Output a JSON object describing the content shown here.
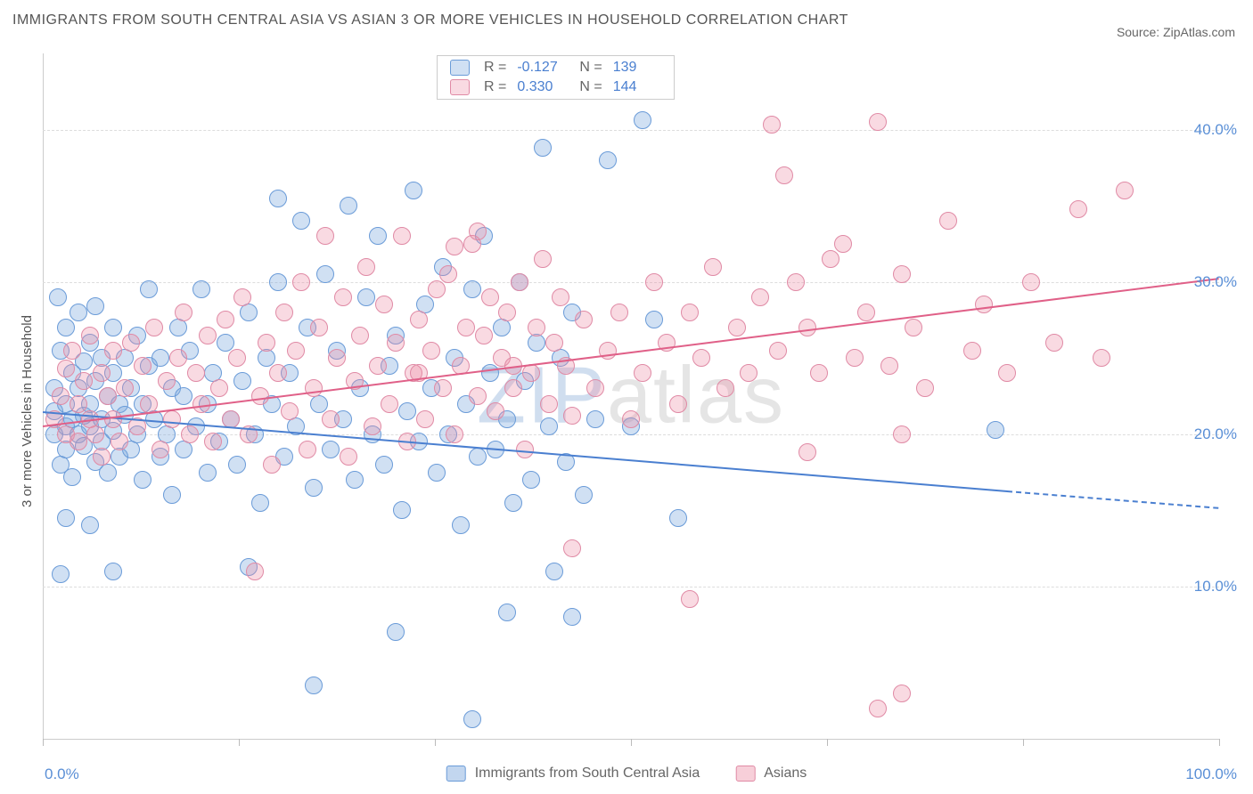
{
  "title": "IMMIGRANTS FROM SOUTH CENTRAL ASIA VS ASIAN 3 OR MORE VEHICLES IN HOUSEHOLD CORRELATION CHART",
  "source_prefix": "Source: ",
  "source_name": "ZipAtlas.com",
  "ylabel": "3 or more Vehicles in Household",
  "watermark_zip": "ZIP",
  "watermark_rest": "atlas",
  "chart": {
    "type": "scatter",
    "xlim": [
      0,
      100
    ],
    "ylim": [
      0,
      45
    ],
    "yticks": [
      10,
      20,
      30,
      40
    ],
    "ytick_labels": [
      "10.0%",
      "20.0%",
      "30.0%",
      "40.0%"
    ],
    "xtick_marks": [
      0,
      16.7,
      33.3,
      50,
      66.7,
      83.3,
      100
    ],
    "x_start_label": "0.0%",
    "x_end_label": "100.0%",
    "grid_color": "#dddddd",
    "axis_color": "#cccccc",
    "background_color": "#ffffff",
    "series": [
      {
        "name": "Immigrants from South Central Asia",
        "fill": "rgba(120,165,220,0.35)",
        "stroke": "#6a9bd8",
        "line_color": "#4a7fd0",
        "marker_radius": 10,
        "R": "-0.127",
        "N": "139",
        "trend": {
          "x1": 0,
          "y1": 21.5,
          "x2": 82,
          "y2": 16.3,
          "solid": true
        },
        "trend_ext": {
          "x1": 82,
          "y1": 16.3,
          "x2": 100,
          "y2": 15.2,
          "solid": false
        },
        "points": [
          [
            1,
            20
          ],
          [
            1,
            21.5
          ],
          [
            1,
            23
          ],
          [
            1.5,
            18
          ],
          [
            1.5,
            25.5
          ],
          [
            1.5,
            10.8
          ],
          [
            2,
            20.5
          ],
          [
            2,
            22
          ],
          [
            2,
            19
          ],
          [
            2,
            27
          ],
          [
            2.5,
            24
          ],
          [
            2.5,
            21
          ],
          [
            2.5,
            17.2
          ],
          [
            3,
            23
          ],
          [
            3,
            20
          ],
          [
            3,
            28
          ],
          [
            3.5,
            21.2
          ],
          [
            3.5,
            24.8
          ],
          [
            3.5,
            19.2
          ],
          [
            4,
            22
          ],
          [
            4,
            26
          ],
          [
            4,
            20.5
          ],
          [
            4.5,
            23.5
          ],
          [
            4.5,
            18.2
          ],
          [
            4.5,
            28.4
          ],
          [
            5,
            21
          ],
          [
            5,
            25
          ],
          [
            5,
            19.5
          ],
          [
            5.5,
            22.5
          ],
          [
            5.5,
            17.5
          ],
          [
            6,
            24
          ],
          [
            6,
            20.2
          ],
          [
            6,
            27
          ],
          [
            6.5,
            22
          ],
          [
            6.5,
            18.5
          ],
          [
            7,
            25
          ],
          [
            7,
            21.3
          ],
          [
            7.5,
            19
          ],
          [
            7.5,
            23
          ],
          [
            8,
            26.5
          ],
          [
            8,
            20
          ],
          [
            8.5,
            22
          ],
          [
            8.5,
            17
          ],
          [
            9,
            24.5
          ],
          [
            9,
            29.5
          ],
          [
            9.5,
            21
          ],
          [
            10,
            18.5
          ],
          [
            10,
            25
          ],
          [
            10.5,
            20
          ],
          [
            11,
            23
          ],
          [
            11,
            16
          ],
          [
            11.5,
            27
          ],
          [
            12,
            19
          ],
          [
            12,
            22.5
          ],
          [
            12.5,
            25.5
          ],
          [
            13,
            20.5
          ],
          [
            13.5,
            29.5
          ],
          [
            14,
            17.5
          ],
          [
            14,
            22
          ],
          [
            14.5,
            24
          ],
          [
            15,
            19.5
          ],
          [
            15.5,
            26
          ],
          [
            16,
            21
          ],
          [
            16.5,
            18
          ],
          [
            17,
            23.5
          ],
          [
            17.5,
            28
          ],
          [
            18,
            20
          ],
          [
            18.5,
            15.5
          ],
          [
            19,
            25
          ],
          [
            19.5,
            22
          ],
          [
            20,
            35.5
          ],
          [
            20,
            30
          ],
          [
            20.5,
            18.5
          ],
          [
            21,
            24
          ],
          [
            21.5,
            20.5
          ],
          [
            22,
            34
          ],
          [
            22.5,
            27
          ],
          [
            23,
            16.5
          ],
          [
            23.5,
            22
          ],
          [
            24,
            30.5
          ],
          [
            24.5,
            19
          ],
          [
            25,
            25.5
          ],
          [
            25.5,
            21
          ],
          [
            26,
            35
          ],
          [
            26.5,
            17
          ],
          [
            27,
            23
          ],
          [
            27.5,
            29
          ],
          [
            28,
            20
          ],
          [
            28.5,
            33
          ],
          [
            29,
            18
          ],
          [
            29.5,
            24.5
          ],
          [
            30,
            26.5
          ],
          [
            30.5,
            15
          ],
          [
            31,
            21.5
          ],
          [
            31.5,
            36
          ],
          [
            32,
            19.5
          ],
          [
            32.5,
            28.5
          ],
          [
            33,
            23
          ],
          [
            33.5,
            17.5
          ],
          [
            34,
            31
          ],
          [
            34.5,
            20
          ],
          [
            35,
            25
          ],
          [
            35.5,
            14
          ],
          [
            36,
            22
          ],
          [
            36.5,
            29.5
          ],
          [
            37,
            18.5
          ],
          [
            37.5,
            33
          ],
          [
            38,
            24
          ],
          [
            38.5,
            19
          ],
          [
            39,
            27
          ],
          [
            39.5,
            21
          ],
          [
            40,
            15.5
          ],
          [
            40.5,
            30
          ],
          [
            41,
            23.5
          ],
          [
            41.5,
            17
          ],
          [
            42,
            26
          ],
          [
            42.5,
            38.8
          ],
          [
            43,
            20.5
          ],
          [
            43.5,
            11
          ],
          [
            44,
            25
          ],
          [
            44.5,
            18.2
          ],
          [
            45,
            28
          ],
          [
            45,
            8
          ],
          [
            46,
            16
          ],
          [
            47,
            21
          ],
          [
            48,
            38
          ],
          [
            50,
            20.5
          ],
          [
            51,
            40.6
          ],
          [
            52,
            27.5
          ],
          [
            54,
            14.5
          ],
          [
            23,
            3.5
          ],
          [
            30,
            7
          ],
          [
            36.5,
            1.3
          ],
          [
            39.5,
            8.3
          ],
          [
            17.5,
            11.3
          ],
          [
            81,
            20.3
          ],
          [
            6,
            11
          ],
          [
            4,
            14
          ],
          [
            2,
            14.5
          ],
          [
            1.3,
            29
          ]
        ]
      },
      {
        "name": "Asians",
        "fill": "rgba(235,140,165,0.32)",
        "stroke": "#e08aa5",
        "line_color": "#e06088",
        "marker_radius": 10,
        "R": "0.330",
        "N": "144",
        "trend": {
          "x1": 0,
          "y1": 20.6,
          "x2": 100,
          "y2": 30.3,
          "solid": true
        },
        "points": [
          [
            1,
            21
          ],
          [
            1.5,
            22.5
          ],
          [
            2,
            20
          ],
          [
            2,
            24.3
          ],
          [
            2.5,
            25.5
          ],
          [
            3,
            22
          ],
          [
            3,
            19.5
          ],
          [
            3.5,
            23.5
          ],
          [
            4,
            21
          ],
          [
            4,
            26.5
          ],
          [
            4.5,
            20
          ],
          [
            5,
            24
          ],
          [
            5,
            18.5
          ],
          [
            5.5,
            22.5
          ],
          [
            6,
            25.5
          ],
          [
            6,
            21
          ],
          [
            6.5,
            19.5
          ],
          [
            7,
            23
          ],
          [
            7.5,
            26
          ],
          [
            8,
            20.5
          ],
          [
            8.5,
            24.5
          ],
          [
            9,
            22
          ],
          [
            9.5,
            27
          ],
          [
            10,
            19
          ],
          [
            10.5,
            23.5
          ],
          [
            11,
            21
          ],
          [
            11.5,
            25
          ],
          [
            12,
            28
          ],
          [
            12.5,
            20
          ],
          [
            13,
            24
          ],
          [
            13.5,
            22
          ],
          [
            14,
            26.5
          ],
          [
            14.5,
            19.5
          ],
          [
            15,
            23
          ],
          [
            15.5,
            27.5
          ],
          [
            16,
            21
          ],
          [
            16.5,
            25
          ],
          [
            17,
            29
          ],
          [
            17.5,
            20
          ],
          [
            18,
            11
          ],
          [
            18.5,
            22.5
          ],
          [
            19,
            26
          ],
          [
            19.5,
            18
          ],
          [
            20,
            24
          ],
          [
            20.5,
            28
          ],
          [
            21,
            21.5
          ],
          [
            21.5,
            25.5
          ],
          [
            22,
            30
          ],
          [
            22.5,
            19
          ],
          [
            23,
            23
          ],
          [
            23.5,
            27
          ],
          [
            24,
            33
          ],
          [
            24.5,
            21
          ],
          [
            25,
            25
          ],
          [
            25.5,
            29
          ],
          [
            26,
            18.5
          ],
          [
            26.5,
            23.5
          ],
          [
            27,
            26.5
          ],
          [
            27.5,
            31
          ],
          [
            28,
            20.5
          ],
          [
            28.5,
            24.5
          ],
          [
            29,
            28.5
          ],
          [
            29.5,
            22
          ],
          [
            30,
            26
          ],
          [
            30.5,
            33
          ],
          [
            31,
            19.5
          ],
          [
            31.5,
            24
          ],
          [
            32,
            27.5
          ],
          [
            32.5,
            21
          ],
          [
            33,
            25.5
          ],
          [
            33.5,
            29.5
          ],
          [
            34,
            23
          ],
          [
            34.5,
            30.5
          ],
          [
            35,
            20
          ],
          [
            35.5,
            24.5
          ],
          [
            36,
            27
          ],
          [
            36.5,
            32.5
          ],
          [
            37,
            22.5
          ],
          [
            37.5,
            26.5
          ],
          [
            38,
            29
          ],
          [
            38.5,
            21.5
          ],
          [
            39,
            25
          ],
          [
            39.5,
            28
          ],
          [
            40,
            23
          ],
          [
            40.5,
            30
          ],
          [
            41,
            19
          ],
          [
            41.5,
            24
          ],
          [
            42,
            27
          ],
          [
            42.5,
            31.5
          ],
          [
            43,
            22
          ],
          [
            43.5,
            26
          ],
          [
            44,
            29
          ],
          [
            44.5,
            24.5
          ],
          [
            45,
            12.5
          ],
          [
            46,
            27.5
          ],
          [
            47,
            23
          ],
          [
            48,
            25.5
          ],
          [
            49,
            28
          ],
          [
            50,
            21
          ],
          [
            51,
            24
          ],
          [
            52,
            30
          ],
          [
            53,
            26
          ],
          [
            54,
            22
          ],
          [
            55,
            28
          ],
          [
            56,
            25
          ],
          [
            57,
            31
          ],
          [
            58,
            23
          ],
          [
            59,
            27
          ],
          [
            60,
            24
          ],
          [
            61,
            29
          ],
          [
            62,
            40.3
          ],
          [
            63,
            37
          ],
          [
            62.5,
            25.5
          ],
          [
            64,
            30
          ],
          [
            65,
            27
          ],
          [
            65,
            18.8
          ],
          [
            66,
            24
          ],
          [
            67,
            31.5
          ],
          [
            68,
            32.5
          ],
          [
            69,
            25
          ],
          [
            70,
            28
          ],
          [
            71,
            40.5
          ],
          [
            72,
            24.5
          ],
          [
            73,
            30.5
          ],
          [
            73,
            20
          ],
          [
            74,
            27
          ],
          [
            75,
            23
          ],
          [
            77,
            34
          ],
          [
            79,
            25.5
          ],
          [
            80,
            28.5
          ],
          [
            82,
            24
          ],
          [
            84,
            30
          ],
          [
            86,
            26
          ],
          [
            88,
            34.8
          ],
          [
            90,
            25
          ],
          [
            92,
            36
          ],
          [
            73,
            3
          ],
          [
            71,
            2
          ],
          [
            55,
            9.2
          ],
          [
            32,
            24
          ],
          [
            35,
            32.3
          ],
          [
            37,
            33.3
          ],
          [
            40,
            24.5
          ],
          [
            45,
            21.2
          ]
        ]
      }
    ]
  },
  "bottom_legend": [
    {
      "label": "Immigrants from South Central Asia",
      "fill": "rgba(120,165,220,0.45)",
      "stroke": "#6a9bd8"
    },
    {
      "label": "Asians",
      "fill": "rgba(235,140,165,0.42)",
      "stroke": "#e08aa5"
    }
  ]
}
